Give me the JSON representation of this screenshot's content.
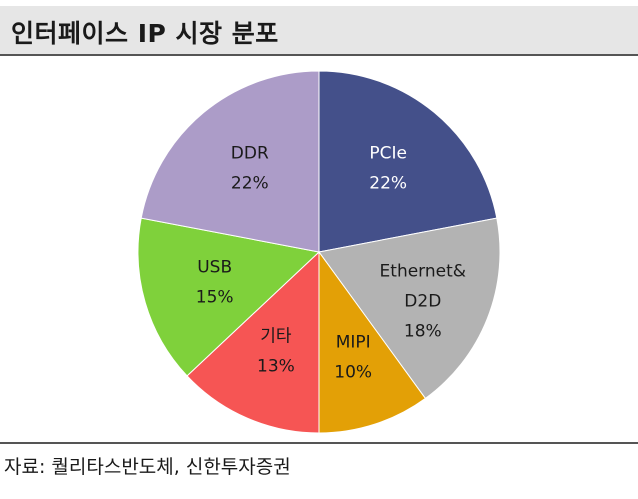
{
  "header": {
    "title": "인터페이스 IP 시장 분포"
  },
  "footer": {
    "source": "자료: 퀄리타스반도체, 신한투자증권"
  },
  "chart_data": {
    "type": "pie",
    "start_angle_deg": 0,
    "direction": "clockwise",
    "slices": [
      {
        "label_lines": [
          "PCIe"
        ],
        "value_label": "22%",
        "value": 22,
        "color": "#44508a",
        "text_color": "#ffffff"
      },
      {
        "label_lines": [
          "Ethernet&",
          "D2D"
        ],
        "value_label": "18%",
        "value": 18,
        "color": "#b3b3b3",
        "text_color": "#1a1a1a"
      },
      {
        "label_lines": [
          "MIPI"
        ],
        "value_label": "10%",
        "value": 10,
        "color": "#e3a006",
        "text_color": "#1a1a1a"
      },
      {
        "label_lines": [
          "기타"
        ],
        "value_label": "13%",
        "value": 13,
        "color": "#f65554",
        "text_color": "#1a1a1a"
      },
      {
        "label_lines": [
          "USB"
        ],
        "value_label": "15%",
        "value": 15,
        "color": "#7fd13b",
        "text_color": "#1a1a1a"
      },
      {
        "label_lines": [
          "DDR"
        ],
        "value_label": "22%",
        "value": 22,
        "color": "#ac9cc8",
        "text_color": "#1a1a1a"
      }
    ]
  }
}
